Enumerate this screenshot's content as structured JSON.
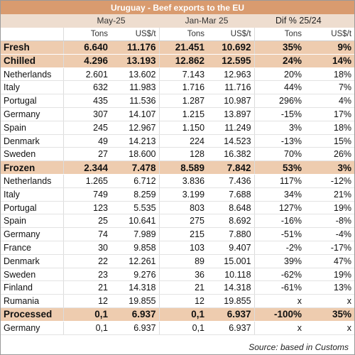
{
  "title": "Uruguay - Beef exports to the EU",
  "periods": {
    "may": "May-25",
    "janmar": "Jan-Mar 25",
    "dif": "Dif %  25/24"
  },
  "units": [
    "Tons",
    "US$/t",
    "Tons",
    "US$/t",
    "Tons",
    "US$/t"
  ],
  "rows": [
    {
      "kind": "group",
      "name": "Fresh",
      "v": [
        "6.640",
        "11.176",
        "21.451",
        "10.692",
        "35%",
        "9%"
      ]
    },
    {
      "kind": "group",
      "name": "Chilled",
      "v": [
        "4.296",
        "13.193",
        "12.862",
        "12.595",
        "24%",
        "14%"
      ]
    },
    {
      "kind": "item",
      "name": "Netherlands",
      "v": [
        "2.601",
        "13.602",
        "7.143",
        "12.963",
        "20%",
        "18%"
      ]
    },
    {
      "kind": "item",
      "name": "Italy",
      "v": [
        "632",
        "11.983",
        "1.716",
        "11.716",
        "44%",
        "7%"
      ]
    },
    {
      "kind": "item",
      "name": "Portugal",
      "v": [
        "435",
        "11.536",
        "1.287",
        "10.987",
        "296%",
        "4%"
      ]
    },
    {
      "kind": "item",
      "name": "Germany",
      "v": [
        "307",
        "14.107",
        "1.215",
        "13.897",
        "-15%",
        "17%"
      ]
    },
    {
      "kind": "item",
      "name": "Spain",
      "v": [
        "245",
        "12.967",
        "1.150",
        "11.249",
        "3%",
        "18%"
      ]
    },
    {
      "kind": "item",
      "name": "Denmark",
      "v": [
        "49",
        "14.213",
        "224",
        "14.523",
        "-13%",
        "15%"
      ]
    },
    {
      "kind": "item",
      "name": "Sweden",
      "v": [
        "27",
        "18.600",
        "128",
        "16.382",
        "70%",
        "26%"
      ]
    },
    {
      "kind": "group",
      "name": "Frozen",
      "v": [
        "2.344",
        "7.478",
        "8.589",
        "7.842",
        "53%",
        "3%"
      ]
    },
    {
      "kind": "item",
      "name": "Netherlands",
      "v": [
        "1.265",
        "6.712",
        "3.836",
        "7.436",
        "117%",
        "-12%"
      ]
    },
    {
      "kind": "item",
      "name": "Italy",
      "v": [
        "749",
        "8.259",
        "3.199",
        "7.688",
        "34%",
        "21%"
      ]
    },
    {
      "kind": "item",
      "name": "Portugal",
      "v": [
        "123",
        "5.535",
        "803",
        "8.648",
        "127%",
        "19%"
      ]
    },
    {
      "kind": "item",
      "name": "Spain",
      "v": [
        "25",
        "10.641",
        "275",
        "8.692",
        "-16%",
        "-8%"
      ]
    },
    {
      "kind": "item",
      "name": "Germany",
      "v": [
        "74",
        "7.989",
        "215",
        "7.880",
        "-51%",
        "-4%"
      ]
    },
    {
      "kind": "item",
      "name": "France",
      "v": [
        "30",
        "9.858",
        "103",
        "9.407",
        "-2%",
        "-17%"
      ]
    },
    {
      "kind": "item",
      "name": "Denmark",
      "v": [
        "22",
        "12.261",
        "89",
        "15.001",
        "39%",
        "47%"
      ]
    },
    {
      "kind": "item",
      "name": "Sweden",
      "v": [
        "23",
        "9.276",
        "36",
        "10.118",
        "-62%",
        "19%"
      ]
    },
    {
      "kind": "item",
      "name": "Finland",
      "v": [
        "21",
        "14.318",
        "21",
        "14.318",
        "-61%",
        "13%"
      ]
    },
    {
      "kind": "item",
      "name": "Rumania",
      "v": [
        "12",
        "19.855",
        "12",
        "19.855",
        "x",
        "x"
      ]
    },
    {
      "kind": "group",
      "name": "Processed",
      "v": [
        "0,1",
        "6.937",
        "0,1",
        "6.937",
        "-100%",
        "35%"
      ]
    },
    {
      "kind": "item",
      "name": "Germany",
      "v": [
        "0,1",
        "6.937",
        "0,1",
        "6.937",
        "x",
        "x"
      ]
    }
  ],
  "source": "Source: based in Customs",
  "colors": {
    "title_bg": "#d99b6f",
    "group_bg": "#eeccaf",
    "period_bg": "#eeddcf"
  }
}
